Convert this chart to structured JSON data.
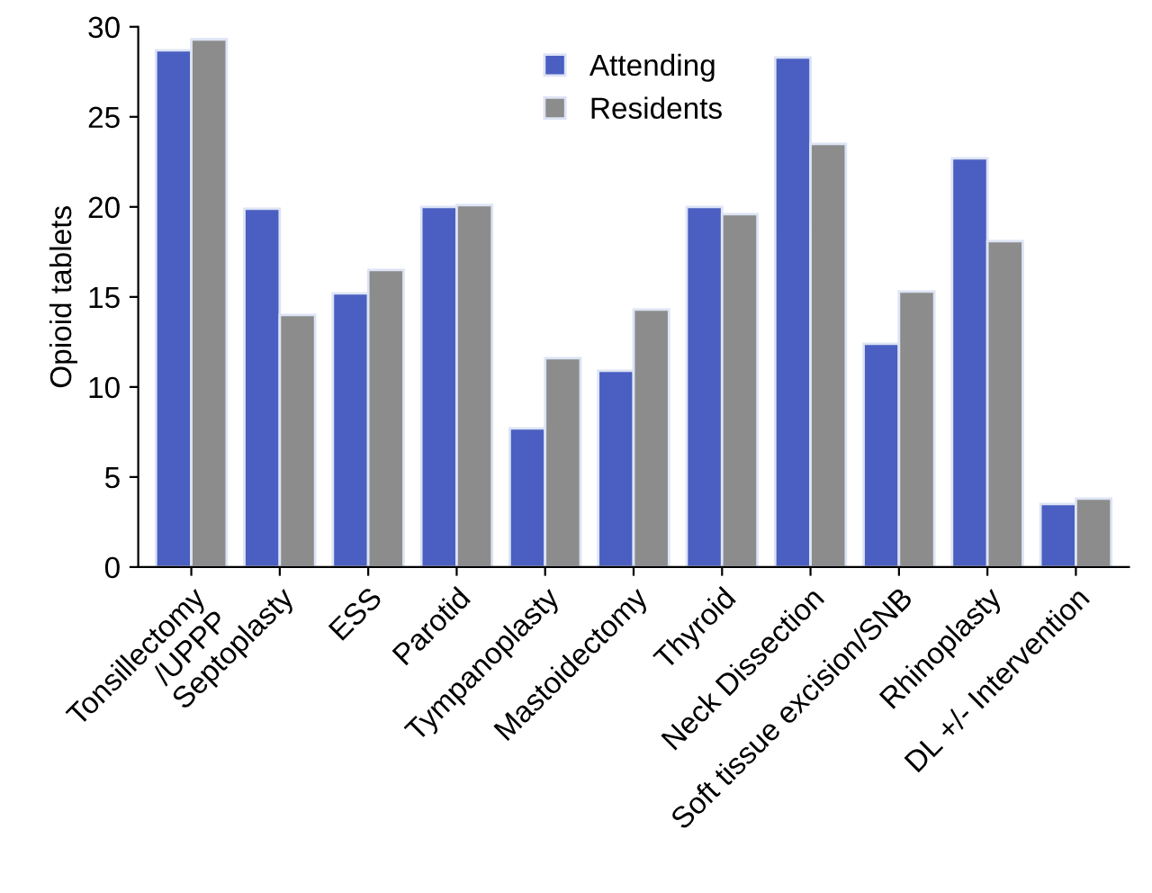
{
  "chart_data": {
    "type": "bar",
    "ylabel": "Opioid tablets",
    "categories": [
      "Tonsillectomy\n/UPPP",
      "Septoplasty",
      "ESS",
      "Parotid",
      "Tympanoplasty",
      "Mastoidectomy",
      "Thyroid",
      "Neck Dissection",
      "Soft tissue excision/SNB",
      "Rhinoplasty",
      "DL +/- Intervention"
    ],
    "series": [
      {
        "name": "Attending",
        "color": "#4a5fc1",
        "values": [
          28.7,
          19.9,
          15.2,
          20.0,
          7.7,
          10.9,
          20.0,
          28.3,
          12.4,
          22.7,
          3.5
        ]
      },
      {
        "name": "Residents",
        "color": "#8c8c8c",
        "values": [
          29.3,
          14.0,
          16.5,
          20.1,
          11.6,
          14.3,
          19.6,
          23.5,
          15.3,
          18.1,
          3.8
        ]
      }
    ],
    "ylim": [
      0,
      30
    ],
    "yticks": [
      0,
      5,
      10,
      15,
      20,
      25,
      30
    ],
    "grid": false,
    "legend": "top"
  }
}
